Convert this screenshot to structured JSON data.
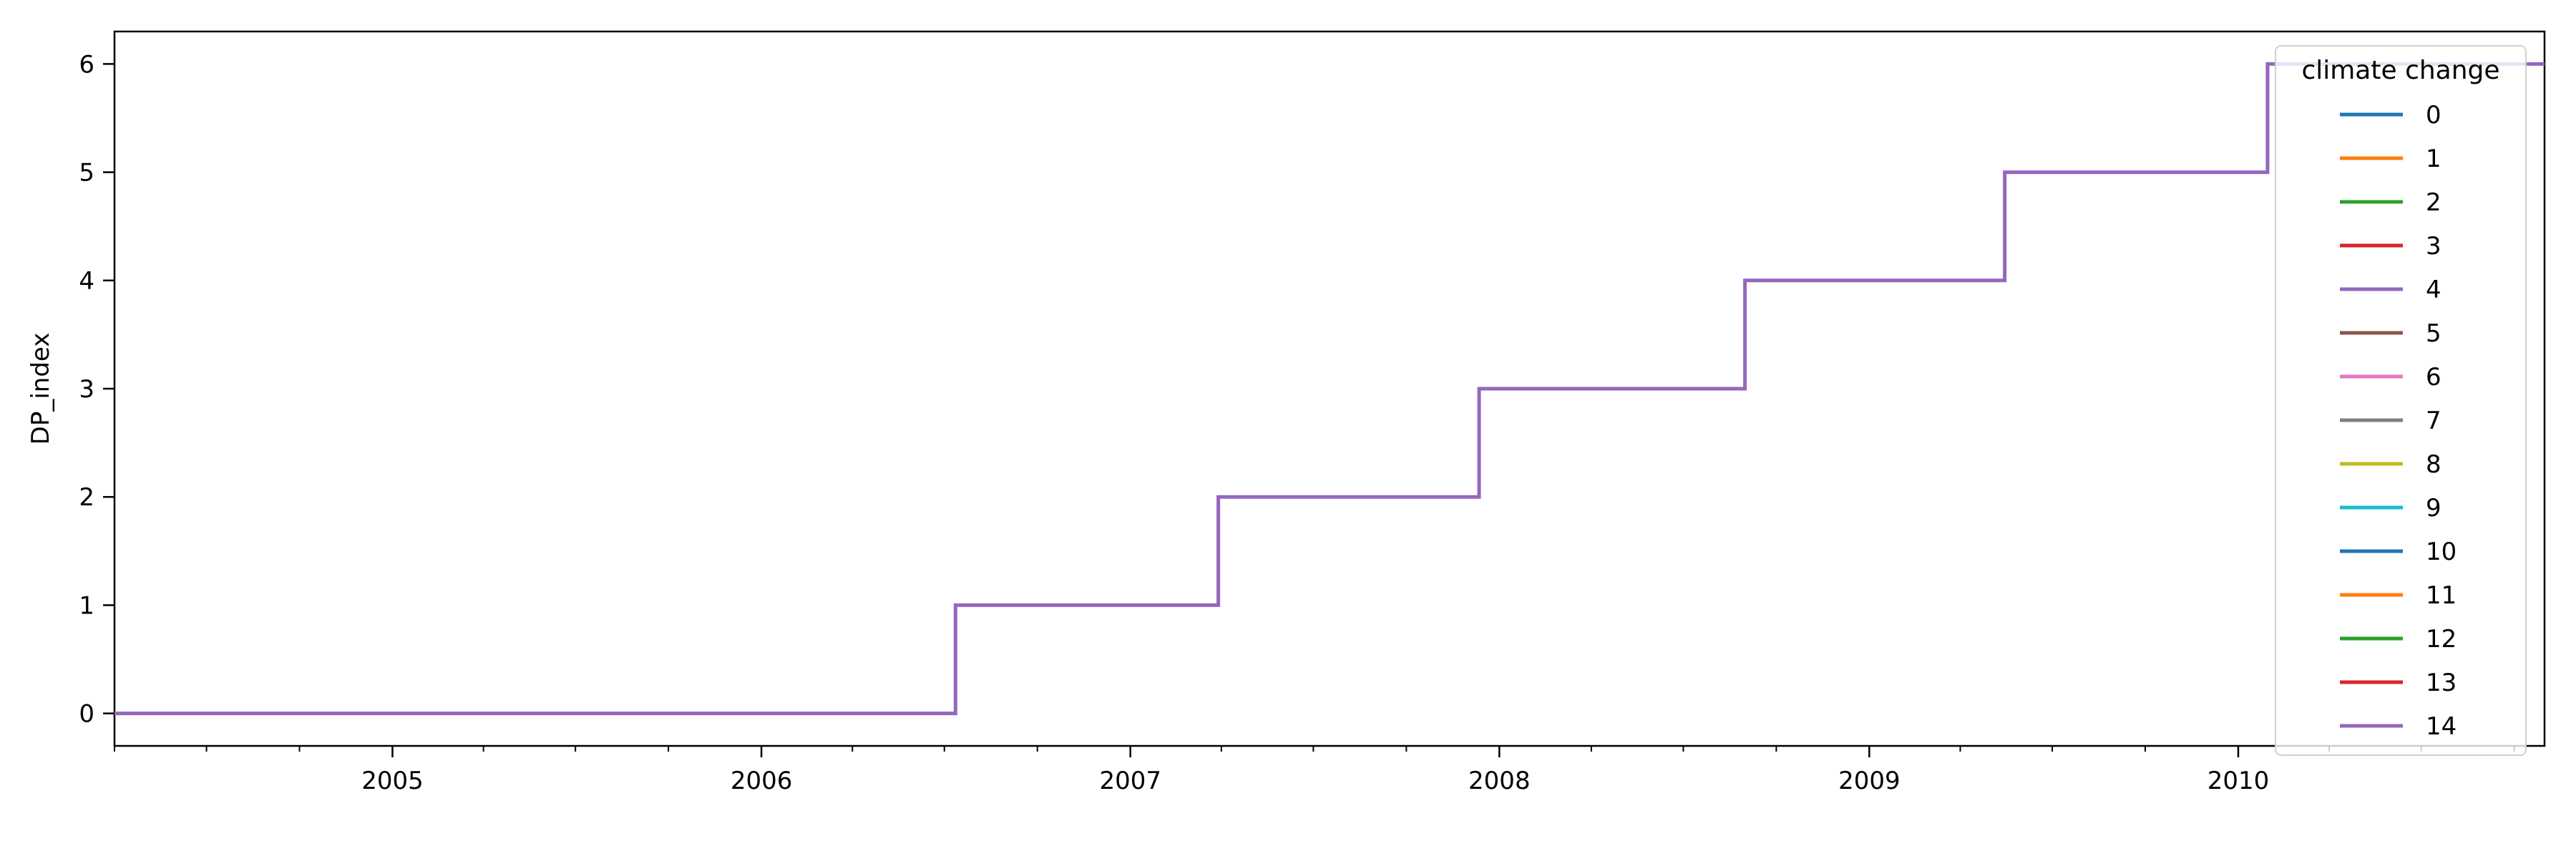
{
  "chart_data": {
    "type": "line",
    "title": "",
    "xlabel": "",
    "ylabel": "DP_index",
    "x_axis": {
      "kind": "date",
      "range": [
        "2004-04-01",
        "2010-10-31"
      ],
      "major_ticks": [
        "2005-01-01",
        "2006-01-01",
        "2007-01-01",
        "2008-01-01",
        "2009-01-01",
        "2010-01-01"
      ],
      "major_tick_labels": [
        "2005",
        "2006",
        "2007",
        "2008",
        "2009",
        "2010"
      ],
      "minor_ticks": "quarterly"
    },
    "y_axis": {
      "range": [
        -0.3,
        6.3
      ],
      "ticks": [
        0,
        1,
        2,
        3,
        4,
        5,
        6
      ],
      "tick_labels": [
        "0",
        "1",
        "2",
        "3",
        "4",
        "5",
        "6"
      ]
    },
    "grid": false,
    "legend": {
      "title": "climate change",
      "placement": "upper right",
      "entries": [
        {
          "label": "0",
          "color": "#1f77b4"
        },
        {
          "label": "1",
          "color": "#ff7f0e"
        },
        {
          "label": "2",
          "color": "#2ca02c"
        },
        {
          "label": "3",
          "color": "#d62728"
        },
        {
          "label": "4",
          "color": "#9467bd"
        },
        {
          "label": "5",
          "color": "#8c564b"
        },
        {
          "label": "6",
          "color": "#e377c2"
        },
        {
          "label": "7",
          "color": "#7f7f7f"
        },
        {
          "label": "8",
          "color": "#bcbd22"
        },
        {
          "label": "9",
          "color": "#17becf"
        },
        {
          "label": "10",
          "color": "#1f77b4"
        },
        {
          "label": "11",
          "color": "#ff7f0e"
        },
        {
          "label": "12",
          "color": "#2ca02c"
        },
        {
          "label": "13",
          "color": "#d62728"
        },
        {
          "label": "14",
          "color": "#9467bd"
        }
      ]
    },
    "series": [
      {
        "color": "#9467bd",
        "step": true,
        "points": [
          {
            "x": "2004-04-01",
            "y": 0
          },
          {
            "x": "2006-07-12",
            "y": 1
          },
          {
            "x": "2007-03-29",
            "y": 2
          },
          {
            "x": "2007-12-12",
            "y": 3
          },
          {
            "x": "2008-08-31",
            "y": 4
          },
          {
            "x": "2009-05-15",
            "y": 5
          },
          {
            "x": "2010-01-30",
            "y": 6
          },
          {
            "x": "2010-10-31",
            "y": 6
          }
        ]
      }
    ]
  }
}
